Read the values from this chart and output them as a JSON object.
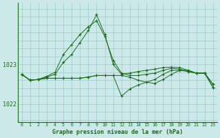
{
  "title": "Graphe pression niveau de la mer (hPa)",
  "background_color": "#cce8e8",
  "plot_bg_color": "#cce8e8",
  "grid_color": "#99cccc",
  "line_color": "#1a6b1a",
  "xlim": [
    -0.5,
    23.5
  ],
  "ylim": [
    1021.55,
    1024.55
  ],
  "yticks": [
    1022,
    1023
  ],
  "xticks": [
    0,
    1,
    2,
    3,
    4,
    5,
    6,
    7,
    8,
    9,
    10,
    11,
    12,
    13,
    14,
    15,
    16,
    17,
    18,
    19,
    20,
    21,
    22,
    23
  ],
  "series": [
    [
      1022.75,
      1022.6,
      1022.62,
      1022.68,
      1022.75,
      1023.05,
      1023.25,
      1023.55,
      1023.85,
      1024.25,
      1023.75,
      1023.0,
      1022.75,
      1022.78,
      1022.82,
      1022.85,
      1022.88,
      1022.92,
      1022.93,
      1022.92,
      1022.85,
      1022.78,
      1022.78,
      1022.5
    ],
    [
      1022.75,
      1022.6,
      1022.62,
      1022.7,
      1022.8,
      1023.25,
      1023.5,
      1023.75,
      1023.95,
      1024.1,
      1023.7,
      1023.1,
      1022.78,
      1022.72,
      1022.72,
      1022.75,
      1022.78,
      1022.85,
      1022.9,
      1022.88,
      1022.82,
      1022.78,
      1022.78,
      1022.5
    ],
    [
      1022.75,
      1022.6,
      1022.62,
      1022.65,
      1022.65,
      1022.65,
      1022.65,
      1022.65,
      1022.68,
      1022.72,
      1022.72,
      1022.72,
      1022.2,
      1022.38,
      1022.48,
      1022.55,
      1022.62,
      1022.75,
      1022.85,
      1022.85,
      1022.82,
      1022.78,
      1022.78,
      1022.42
    ],
    [
      1022.75,
      1022.6,
      1022.62,
      1022.65,
      1022.65,
      1022.65,
      1022.65,
      1022.65,
      1022.68,
      1022.72,
      1022.72,
      1022.72,
      1022.72,
      1022.68,
      1022.6,
      1022.55,
      1022.52,
      1022.62,
      1022.75,
      1022.85,
      1022.85,
      1022.78,
      1022.78,
      1022.42
    ]
  ]
}
